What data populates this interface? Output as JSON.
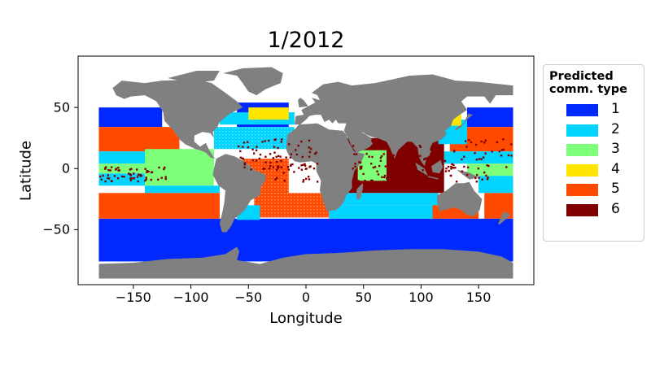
{
  "title": "1/2012",
  "xlabel": "Longitude",
  "ylabel": "Latitude",
  "x_ticks": [
    "−150",
    "−100",
    "−50",
    "0",
    "50",
    "100",
    "150"
  ],
  "x_tick_values": [
    -150,
    -100,
    -50,
    0,
    50,
    100,
    150
  ],
  "y_ticks": [
    "50",
    "0",
    "−50"
  ],
  "y_tick_values": [
    50,
    0,
    -50
  ],
  "legend": {
    "title_line1": "Predicted",
    "title_line2": "comm. type",
    "items": [
      {
        "label": "1",
        "color": "#0028ff"
      },
      {
        "label": "2",
        "color": "#00d4ff"
      },
      {
        "label": "3",
        "color": "#7dff7a"
      },
      {
        "label": "4",
        "color": "#ffe500"
      },
      {
        "label": "5",
        "color": "#ff4a00"
      },
      {
        "label": "6",
        "color": "#800000"
      }
    ]
  },
  "colors": {
    "land": "#808080",
    "background": "#ffffff"
  },
  "chart_data": {
    "type": "heatmap",
    "title": "1/2012",
    "xlabel": "Longitude",
    "ylabel": "Latitude",
    "xlim": [
      -198,
      198
    ],
    "ylim": [
      -95,
      92
    ],
    "legend_placement": "outside-right",
    "zones": [
      {
        "type": 1,
        "lat_range": [
          -75,
          -42
        ],
        "lon_range": [
          -180,
          180
        ]
      },
      {
        "type": 1,
        "lat_range": [
          35,
          52
        ],
        "lon_range": [
          -180,
          -125
        ]
      },
      {
        "type": 1,
        "lat_range": [
          35,
          52
        ],
        "lon_range": [
          140,
          180
        ]
      },
      {
        "type": 5,
        "lat_range": [
          -40,
          -20
        ],
        "lon_range": [
          -180,
          -70
        ]
      },
      {
        "type": 5,
        "lat_range": [
          -40,
          -18
        ],
        "lon_range": [
          -40,
          20
        ]
      },
      {
        "type": 5,
        "lat_range": [
          12,
          35
        ],
        "lon_range": [
          -180,
          -125
        ]
      },
      {
        "type": 5,
        "lat_range": [
          12,
          35
        ],
        "lon_range": [
          130,
          180
        ]
      },
      {
        "type": 3,
        "lat_range": [
          -15,
          15
        ],
        "lon_range": [
          -150,
          -80
        ]
      },
      {
        "type": 3,
        "lat_range": [
          -10,
          15
        ],
        "lon_range": [
          45,
          65
        ]
      },
      {
        "type": 2,
        "lat_range": [
          -18,
          -5
        ],
        "lon_range": [
          -180,
          -80
        ]
      },
      {
        "type": 2,
        "lat_range": [
          -40,
          -20
        ],
        "lon_range": [
          20,
          120
        ]
      },
      {
        "type": 4,
        "lat_range": [
          40,
          50
        ],
        "lon_range": [
          -50,
          -20
        ]
      },
      {
        "type": 6,
        "lat_range": [
          -20,
          20
        ],
        "lon_range": [
          50,
          110
        ]
      }
    ]
  }
}
